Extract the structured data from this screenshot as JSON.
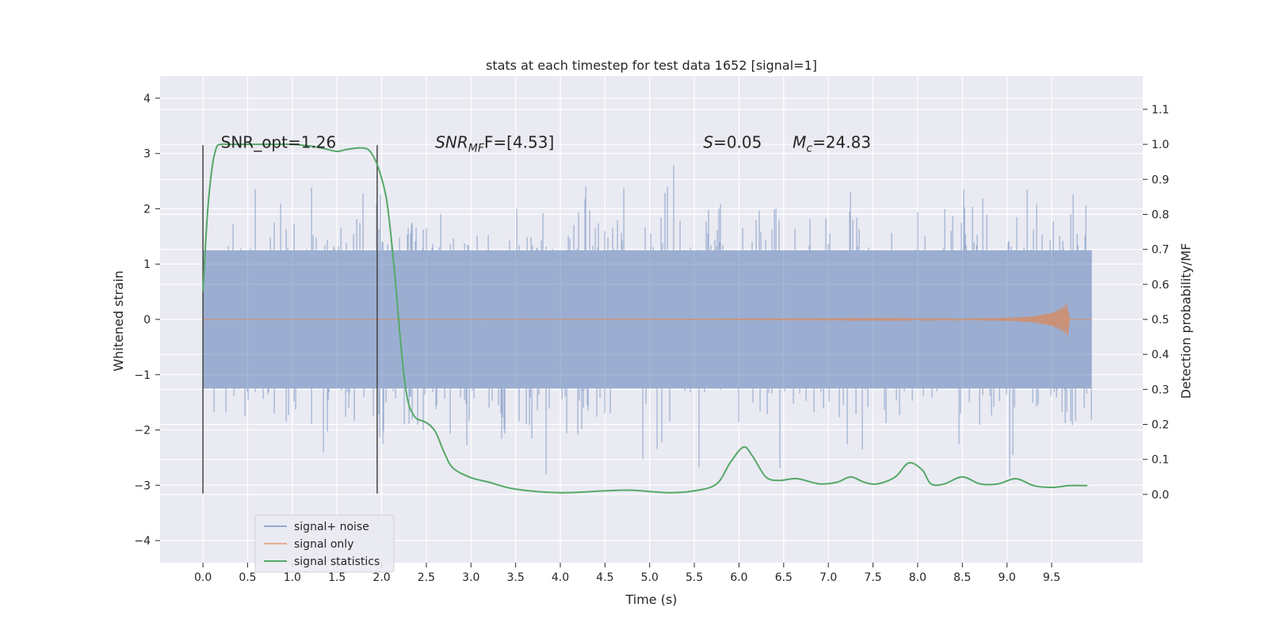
{
  "chart_data": {
    "type": "line",
    "title": "stats at each timestep for test data 1652 [signal=1]",
    "xlabel": "Time (s)",
    "ylabel_left": "Whitened strain",
    "ylabel_right": "Detection probability/MF",
    "xlim": [
      -0.48,
      10.52
    ],
    "ylim_left": [
      -4.4,
      4.4
    ],
    "ylim_right": [
      -0.195,
      1.195
    ],
    "x_ticks": [
      0.0,
      0.5,
      1.0,
      1.5,
      2.0,
      2.5,
      3.0,
      3.5,
      4.0,
      4.5,
      5.0,
      5.5,
      6.0,
      6.5,
      7.0,
      7.5,
      8.0,
      8.5,
      9.0,
      9.5
    ],
    "x_tick_labels": [
      "0.0",
      "0.5",
      "1.0",
      "1.5",
      "2.0",
      "2.5",
      "3.0",
      "3.5",
      "4.0",
      "4.5",
      "5.0",
      "5.5",
      "6.0",
      "6.5",
      "7.0",
      "7.5",
      "8.0",
      "8.5",
      "9.0",
      "9.5"
    ],
    "y_left_ticks": [
      -4,
      -3,
      -2,
      -1,
      0,
      1,
      2,
      3,
      4
    ],
    "y_left_tick_labels": [
      "−4",
      "−3",
      "−2",
      "−1",
      "0",
      "1",
      "2",
      "3",
      "4"
    ],
    "y_right_ticks": [
      0.0,
      0.1,
      0.2,
      0.3,
      0.4,
      0.5,
      0.6,
      0.7,
      0.8,
      0.9,
      1.0,
      1.1
    ],
    "y_right_tick_labels": [
      "0.0",
      "0.1",
      "0.2",
      "0.3",
      "0.4",
      "0.5",
      "0.6",
      "0.7",
      "0.8",
      "0.9",
      "1.0",
      "1.1"
    ],
    "grid": true,
    "legend_position": "lower-left",
    "series": [
      {
        "name": "signal+ noise",
        "axis": "left",
        "color": "#4c72b0",
        "style": "dense noise, amplitude envelope approx ±1.3 with peaks to ±4",
        "x_range": [
          0.0,
          9.95
        ]
      },
      {
        "name": "signal only",
        "axis": "left",
        "color": "#dd8452",
        "x": [
          0.0,
          8.5,
          9.0,
          9.3,
          9.5,
          9.6,
          9.65,
          9.68,
          9.7
        ],
        "amplitude": [
          0.0,
          0.01,
          0.03,
          0.06,
          0.12,
          0.2,
          0.27,
          0.3,
          0.0
        ]
      },
      {
        "name": "signal statistics",
        "axis": "right",
        "color": "#55a868",
        "x": [
          0.0,
          0.05,
          0.1,
          0.15,
          0.2,
          0.3,
          0.5,
          0.8,
          1.0,
          1.2,
          1.35,
          1.5,
          1.6,
          1.75,
          1.85,
          1.92,
          1.98,
          2.05,
          2.1,
          2.15,
          2.2,
          2.25,
          2.3,
          2.35,
          2.4,
          2.5,
          2.6,
          2.7,
          2.8,
          3.0,
          3.2,
          3.5,
          4.0,
          4.5,
          4.8,
          5.2,
          5.5,
          5.75,
          5.9,
          6.05,
          6.15,
          6.3,
          6.45,
          6.65,
          6.9,
          7.1,
          7.25,
          7.4,
          7.55,
          7.75,
          7.9,
          8.05,
          8.15,
          8.3,
          8.5,
          8.7,
          8.9,
          9.1,
          9.3,
          9.5,
          9.7,
          9.9
        ],
        "y": [
          0.58,
          0.8,
          0.93,
          0.99,
          1.0,
          1.0,
          1.0,
          1.0,
          1.0,
          0.995,
          0.988,
          0.98,
          0.985,
          0.99,
          0.985,
          0.96,
          0.92,
          0.85,
          0.75,
          0.62,
          0.47,
          0.34,
          0.26,
          0.23,
          0.215,
          0.205,
          0.18,
          0.12,
          0.075,
          0.048,
          0.035,
          0.015,
          0.005,
          0.01,
          0.012,
          0.005,
          0.01,
          0.03,
          0.09,
          0.135,
          0.11,
          0.05,
          0.04,
          0.045,
          0.03,
          0.035,
          0.05,
          0.035,
          0.03,
          0.05,
          0.09,
          0.07,
          0.03,
          0.03,
          0.05,
          0.03,
          0.03,
          0.045,
          0.025,
          0.02,
          0.025,
          0.025
        ]
      }
    ],
    "vertical_lines": [
      {
        "x": 0.0,
        "y_from": -3.15,
        "y_to": 3.15
      },
      {
        "x": 1.95,
        "y_from": -3.15,
        "y_to": 3.15
      }
    ],
    "annotations": [
      {
        "id": "snr-opt",
        "text": "SNR_opt=1.26",
        "x": 0.2,
        "y": 3.1
      },
      {
        "id": "snr-mf",
        "base": "SNR",
        "sub": "MF",
        "rest": "F=[4.53]",
        "x": 2.6,
        "y": 3.1
      },
      {
        "id": "s-stat",
        "base": "S",
        "rest": "=0.05",
        "x": 5.6,
        "y": 3.1
      },
      {
        "id": "mc",
        "base": "M",
        "sub": "c",
        "rest": "=24.83",
        "x": 6.6,
        "y": 3.1
      }
    ]
  }
}
